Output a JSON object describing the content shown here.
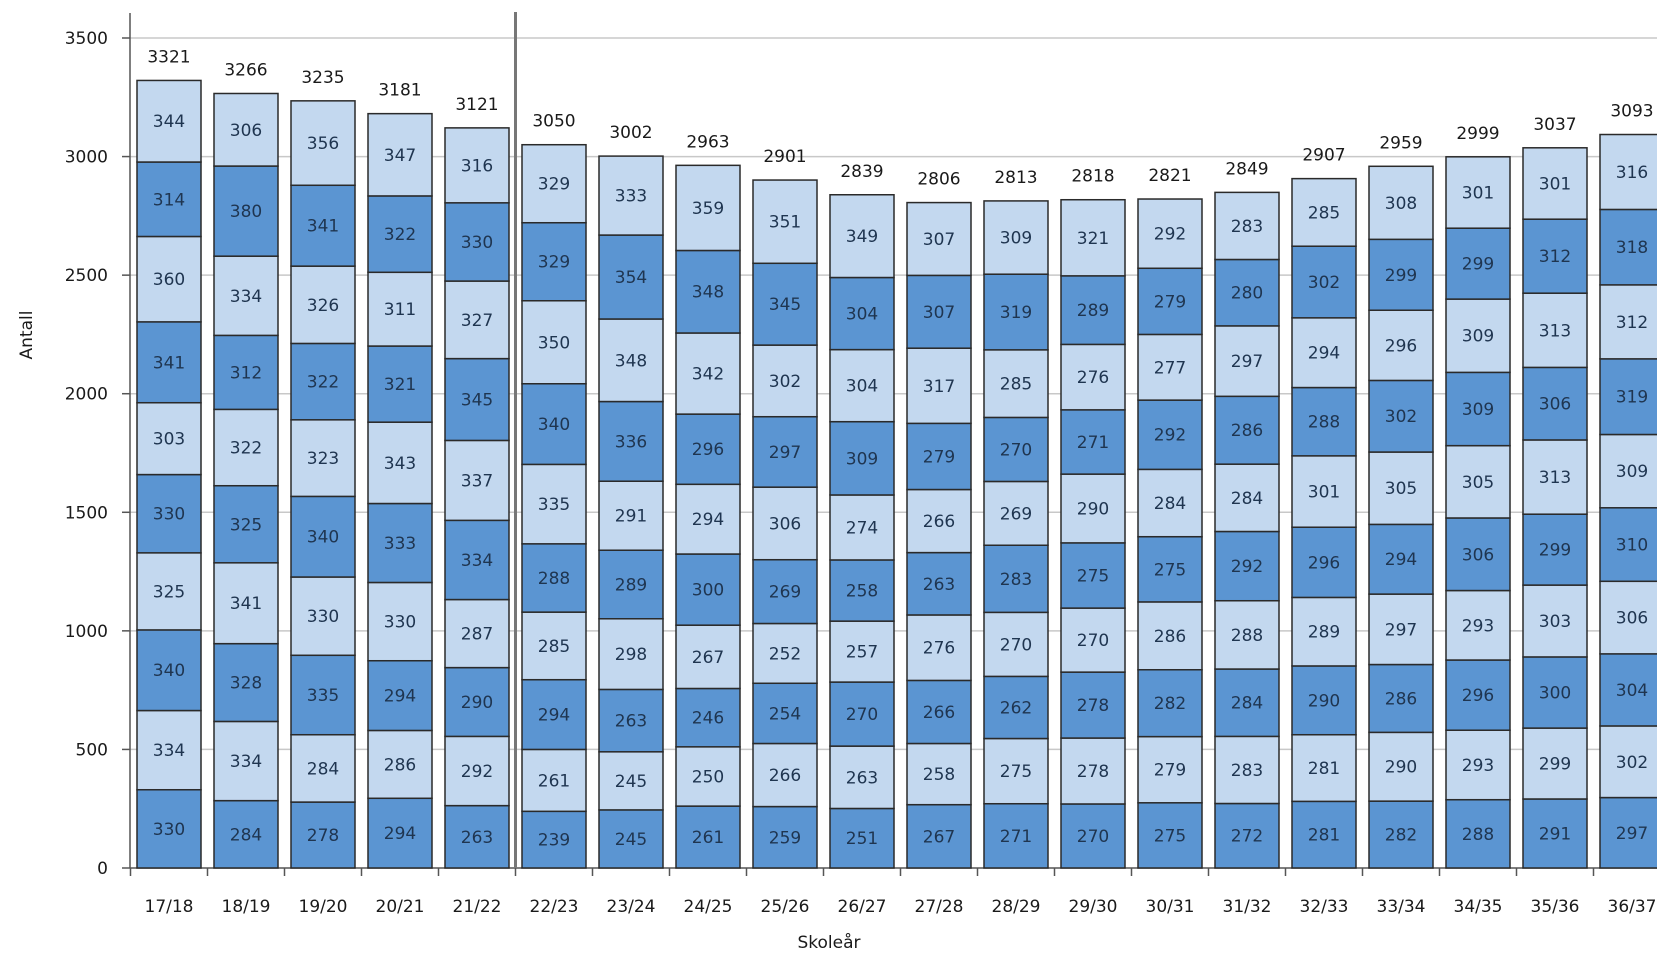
{
  "chart_data": {
    "type": "bar",
    "stacked": true,
    "xlabel": "Skoleår",
    "ylabel": "Antall",
    "ylim": [
      0,
      3500
    ],
    "yticks": [
      0,
      500,
      1000,
      1500,
      2000,
      2500,
      3000,
      3500
    ],
    "grid": true,
    "colors": {
      "dark": "#5b95d2",
      "light": "#c3d8ef",
      "stroke": "#2a2a2a",
      "grid": "#c8c8c8"
    },
    "categories": [
      "17/18",
      "18/19",
      "19/20",
      "20/21",
      "21/22",
      "22/23",
      "23/24",
      "24/25",
      "25/26",
      "26/27",
      "27/28",
      "28/29",
      "29/30",
      "30/31",
      "31/32",
      "32/33",
      "33/34",
      "34/35",
      "35/36",
      "36/37"
    ],
    "totals": [
      3321,
      3266,
      3235,
      3181,
      3121,
      3050,
      3002,
      2963,
      2901,
      2839,
      2806,
      2813,
      2818,
      2821,
      2849,
      2907,
      2959,
      2999,
      3037,
      3093
    ],
    "segments": [
      [
        330,
        334,
        340,
        325,
        330,
        303,
        341,
        360,
        314,
        344
      ],
      [
        284,
        334,
        328,
        341,
        325,
        322,
        312,
        334,
        380,
        306
      ],
      [
        278,
        284,
        335,
        330,
        340,
        323,
        322,
        326,
        341,
        356
      ],
      [
        294,
        286,
        294,
        330,
        333,
        343,
        321,
        311,
        322,
        347
      ],
      [
        263,
        292,
        290,
        287,
        334,
        337,
        345,
        327,
        330,
        316
      ],
      [
        239,
        261,
        294,
        285,
        288,
        335,
        340,
        350,
        329,
        329
      ],
      [
        245,
        245,
        263,
        298,
        289,
        291,
        336,
        348,
        354,
        333
      ],
      [
        261,
        250,
        246,
        267,
        300,
        294,
        296,
        342,
        348,
        359
      ],
      [
        259,
        266,
        254,
        252,
        269,
        306,
        297,
        302,
        345,
        351
      ],
      [
        251,
        263,
        270,
        257,
        258,
        274,
        309,
        304,
        304,
        349
      ],
      [
        267,
        258,
        266,
        276,
        263,
        266,
        279,
        317,
        307,
        307
      ],
      [
        271,
        275,
        262,
        270,
        283,
        269,
        270,
        285,
        319,
        309
      ],
      [
        270,
        278,
        278,
        270,
        275,
        290,
        271,
        276,
        289,
        321
      ],
      [
        275,
        279,
        282,
        286,
        275,
        284,
        292,
        277,
        279,
        292
      ],
      [
        272,
        283,
        284,
        288,
        292,
        284,
        286,
        297,
        280,
        283
      ],
      [
        281,
        281,
        290,
        289,
        296,
        301,
        288,
        294,
        302,
        285
      ],
      [
        282,
        290,
        286,
        297,
        294,
        305,
        302,
        296,
        299,
        308
      ],
      [
        288,
        293,
        296,
        293,
        306,
        305,
        309,
        309,
        299,
        301
      ],
      [
        291,
        299,
        300,
        303,
        299,
        313,
        306,
        313,
        312,
        301
      ],
      [
        297,
        302,
        304,
        306,
        310,
        309,
        319,
        312,
        318,
        316
      ]
    ]
  }
}
